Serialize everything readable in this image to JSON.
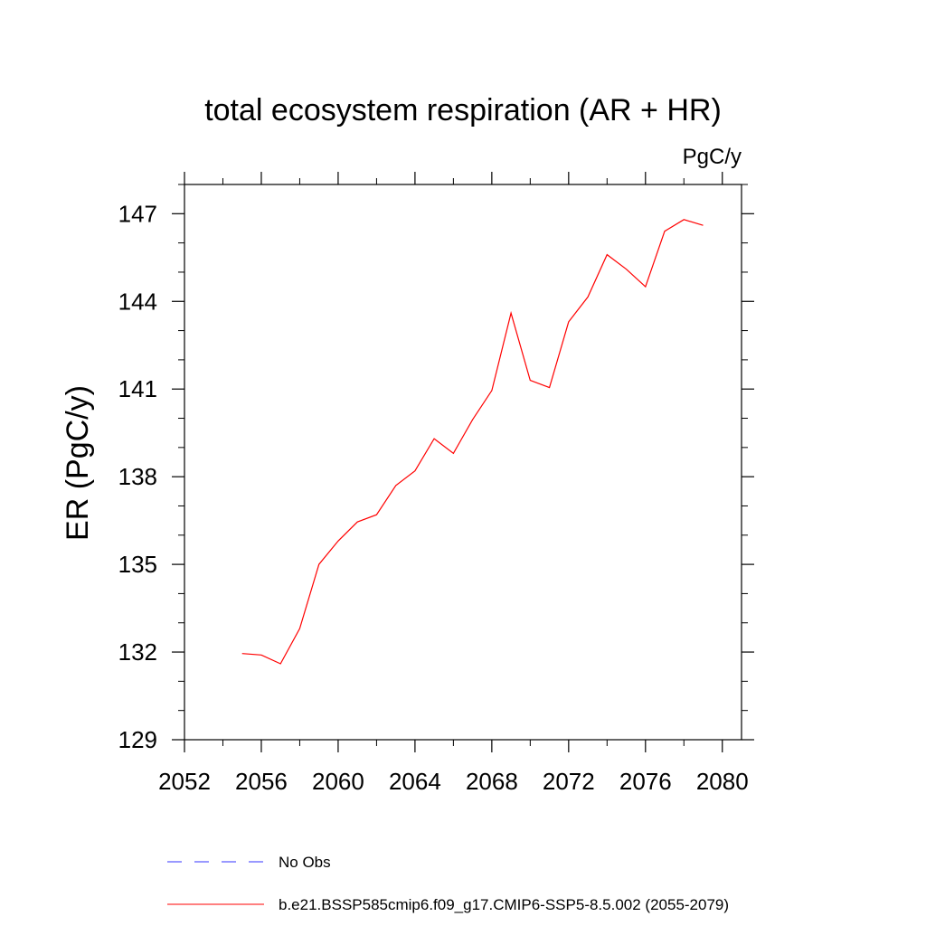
{
  "chart_data": {
    "type": "line",
    "title": "total ecosystem respiration (AR + HR)",
    "units_label": "PgC/y",
    "xlabel": "",
    "ylabel": "ER  (PgC/y)",
    "xlim": [
      2052,
      2081
    ],
    "ylim": [
      129,
      148
    ],
    "x_ticks": [
      2052,
      2056,
      2060,
      2064,
      2068,
      2072,
      2076,
      2080
    ],
    "y_ticks": [
      129,
      132,
      135,
      138,
      141,
      144,
      147
    ],
    "x_minor_step": 2,
    "y_minor_step": 1,
    "series": [
      {
        "name": "b.e21.BSSP585cmip6.f09_g17.CMIP6-SSP5-8.5.002 (2055-2079)",
        "color": "#ff0000",
        "style": "solid",
        "x": [
          2055,
          2056,
          2057,
          2058,
          2059,
          2060,
          2061,
          2062,
          2063,
          2064,
          2065,
          2066,
          2067,
          2068,
          2069,
          2070,
          2071,
          2072,
          2073,
          2074,
          2075,
          2076,
          2077,
          2078,
          2079
        ],
        "y": [
          131.95,
          131.9,
          131.6,
          132.8,
          135.0,
          135.8,
          136.45,
          136.7,
          137.7,
          138.2,
          139.3,
          138.8,
          139.95,
          140.95,
          143.6,
          141.3,
          141.05,
          143.3,
          144.15,
          145.6,
          145.1,
          144.5,
          146.4,
          146.8,
          146.6
        ]
      }
    ],
    "legend": [
      {
        "name": "No Obs",
        "color": "#3333ff",
        "style": "dashed"
      },
      {
        "name": "b.e21.BSSP585cmip6.f09_g17.CMIP6-SSP5-8.5.002 (2055-2079)",
        "color": "#ff0000",
        "style": "solid"
      }
    ],
    "legend_position": "bottom",
    "grid": false
  }
}
